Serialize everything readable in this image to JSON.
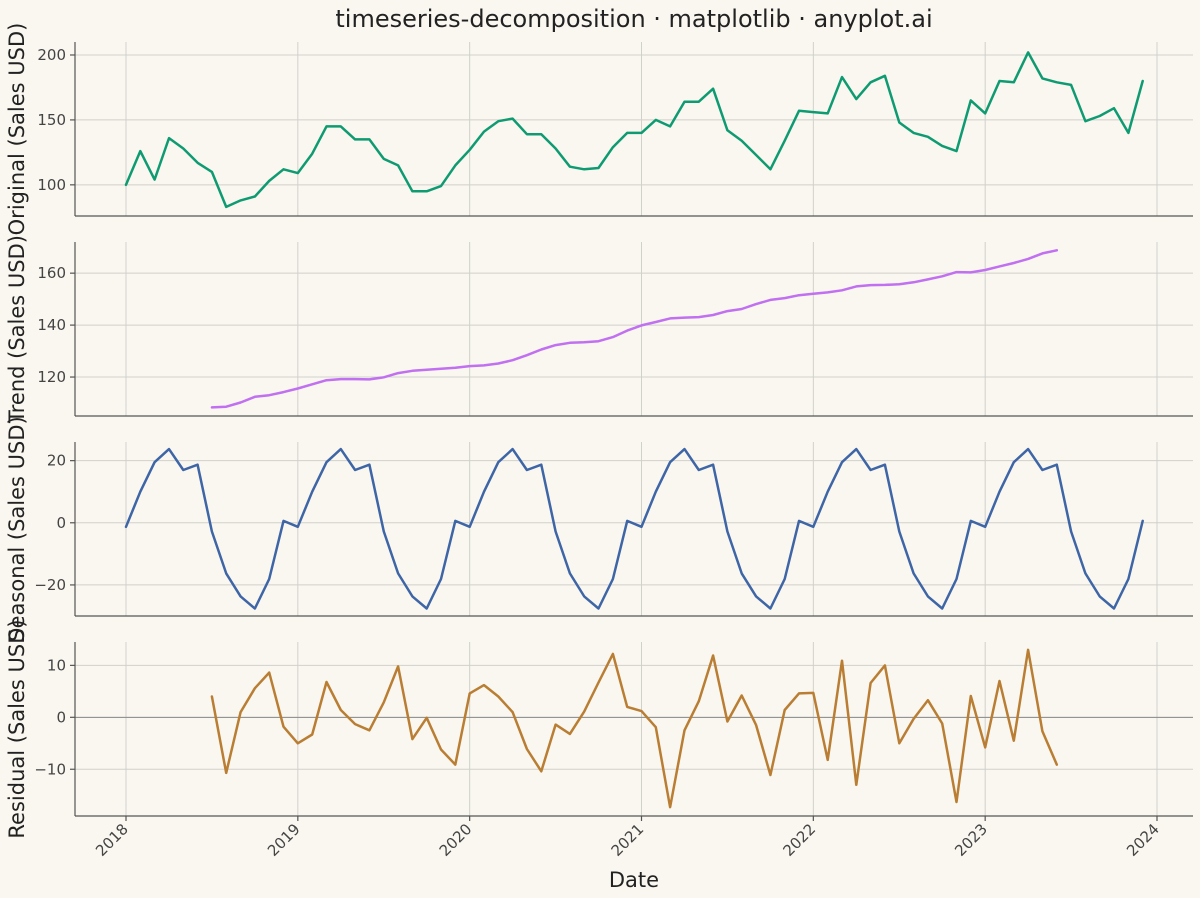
{
  "chart_data": {
    "type": "line",
    "title": "timeseries-decomposition · matplotlib · anyplot.ai",
    "xlabel": "Date",
    "x_start": "2018-01",
    "x_end": "2023-12",
    "x_ticks": [
      "2018",
      "2019",
      "2020",
      "2021",
      "2022",
      "2023",
      "2024"
    ],
    "panels": [
      {
        "name": "original",
        "ylabel": "Original (Sales USD)",
        "color": "#0f9b72",
        "ylim": [
          76,
          210
        ],
        "yticks": [
          100,
          150,
          200
        ],
        "zero_line": false,
        "start_month": 0,
        "values": [
          100,
          126,
          104,
          136,
          128,
          117,
          110,
          83,
          88,
          91,
          103,
          112,
          109,
          124,
          145,
          145,
          135,
          135,
          120,
          115,
          95,
          95,
          99,
          115,
          127,
          141,
          149,
          151,
          139,
          139,
          128,
          114,
          112,
          113,
          129,
          140,
          140,
          150,
          145,
          164,
          164,
          174,
          142,
          134,
          123,
          112,
          134,
          157,
          156,
          155,
          183,
          166,
          179,
          184,
          148,
          140,
          137,
          130,
          126,
          165,
          155,
          180,
          179,
          202,
          182,
          179,
          177,
          149,
          153,
          159,
          140,
          180
        ]
      },
      {
        "name": "trend",
        "ylabel": "Trend (Sales USD)",
        "color": "#c070f0",
        "ylim": [
          105,
          172
        ],
        "yticks": [
          120,
          140,
          160
        ],
        "zero_line": false,
        "start_month": 6,
        "values": [
          108.3,
          108.6,
          110.2,
          112.4,
          113.0,
          114.2,
          115.6,
          117.2,
          118.8,
          119.2,
          119.2,
          119.1,
          119.9,
          121.5,
          122.4,
          122.8,
          123.2,
          123.6,
          124.2,
          124.5,
          125.2,
          126.5,
          128.4,
          130.6,
          132.3,
          133.2,
          133.4,
          133.8,
          135.4,
          137.9,
          139.9,
          141.2,
          142.6,
          142.9,
          143.1,
          143.9,
          145.4,
          146.2,
          148.1,
          149.7,
          150.4,
          151.5,
          152.1,
          152.6,
          153.4,
          154.9,
          155.4,
          155.5,
          155.7,
          156.5,
          157.6,
          158.8,
          160.4,
          160.3,
          161.2,
          162.6,
          163.9,
          165.5,
          167.6,
          168.8
        ]
      },
      {
        "name": "seasonal",
        "ylabel": "Seasonal (Sales USD)",
        "color": "#3e65a6",
        "ylim": [
          -30,
          26
        ],
        "yticks": [
          -20,
          0,
          20
        ],
        "zero_line": false,
        "start_month": 0,
        "values": [
          -1.3,
          10.0,
          19.5,
          23.7,
          17.0,
          18.7,
          -2.8,
          -16.3,
          -23.7,
          -27.6,
          -18.1,
          0.6,
          -1.3,
          10.0,
          19.5,
          23.7,
          17.0,
          18.7,
          -2.8,
          -16.3,
          -23.7,
          -27.6,
          -18.1,
          0.6,
          -1.3,
          10.0,
          19.5,
          23.7,
          17.0,
          18.7,
          -2.8,
          -16.3,
          -23.7,
          -27.6,
          -18.1,
          0.6,
          -1.3,
          10.0,
          19.5,
          23.7,
          17.0,
          18.7,
          -2.8,
          -16.3,
          -23.7,
          -27.6,
          -18.1,
          0.6,
          -1.3,
          10.0,
          19.5,
          23.7,
          17.0,
          18.7,
          -2.8,
          -16.3,
          -23.7,
          -27.6,
          -18.1,
          0.6,
          -1.3,
          10.0,
          19.5,
          23.7,
          17.0,
          18.7,
          -2.8,
          -16.3,
          -23.7,
          -27.6,
          -18.1,
          0.6
        ]
      },
      {
        "name": "residual",
        "ylabel": "Residual (Sales USD)",
        "color": "#b97e33",
        "ylim": [
          -19,
          14.5
        ],
        "yticks": [
          -10,
          0,
          10
        ],
        "zero_line": true,
        "start_month": 6,
        "values": [
          4.0,
          -10.7,
          1.0,
          5.6,
          8.6,
          -1.8,
          -5.0,
          -3.3,
          6.8,
          1.4,
          -1.3,
          -2.5,
          2.9,
          9.8,
          -4.2,
          -0.1,
          -6.2,
          -9.1,
          4.6,
          6.2,
          4.0,
          1.0,
          -6.1,
          -10.4,
          -1.4,
          -3.2,
          1.1,
          6.7,
          12.2,
          2.0,
          1.2,
          -1.9,
          -17.3,
          -2.5,
          3.1,
          11.9,
          -0.8,
          4.2,
          -1.5,
          -11.1,
          1.4,
          4.6,
          4.7,
          -8.2,
          10.9,
          -13.0,
          6.6,
          10.0,
          -5.0,
          -0.3,
          3.3,
          -1.2,
          -16.3,
          4.1,
          -5.8,
          7.0,
          -4.5,
          13.0,
          -2.7,
          -9.1
        ]
      }
    ]
  }
}
